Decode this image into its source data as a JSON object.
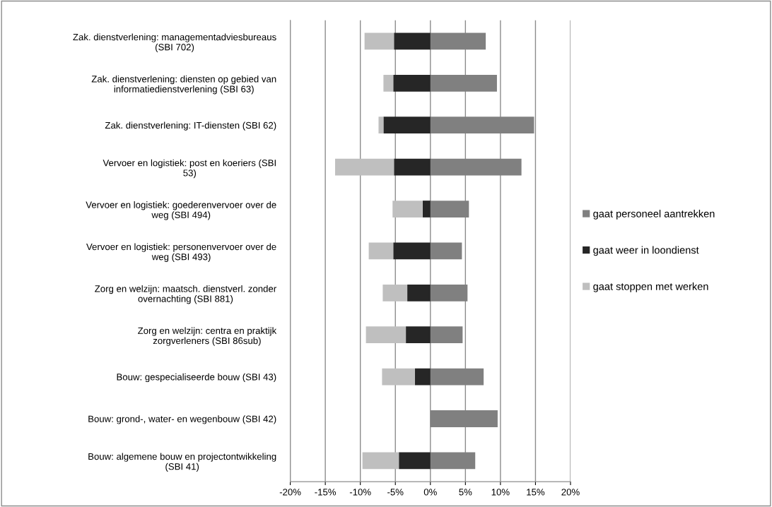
{
  "chart_data": {
    "type": "bar",
    "orientation": "horizontal",
    "stacked": true,
    "categories": [
      "Zak. dienstverlening: managementadviesbureaus (SBI 702)",
      "Zak. dienstverlening: diensten op gebied van informatiedienstverlening (SBI 63)",
      "Zak. dienstverlening: IT-diensten (SBI 62)",
      "Vervoer en logistiek: post en koeriers (SBI 53)",
      "Vervoer en logistiek: goederenvervoer over de weg (SBI 494)",
      "Vervoer en logistiek: personenvervoer over de weg (SBI 493)",
      "Zorg en welzijn: maatsch. dienstverl. zonder overnachting (SBI 881)",
      "Zorg en welzijn: centra en praktijk zorgverleners (SBI 86sub)",
      "Bouw: gespecialiseerde bouw (SBI 43)",
      "Bouw: grond-, water- en wegenbouw (SBI 42)",
      "Bouw: algemene bouw en projectontwikkeling (SBI 41)"
    ],
    "series": [
      {
        "name": "gaat personeel aantrekken",
        "color": "#808080",
        "values": [
          7.9,
          9.5,
          14.8,
          13.0,
          5.5,
          4.5,
          5.3,
          4.6,
          7.6,
          9.6,
          6.4
        ]
      },
      {
        "name": "gaat weer in loondienst",
        "color": "#262626",
        "values": [
          -5.2,
          -5.3,
          -6.7,
          -5.2,
          -1.1,
          -5.3,
          -3.3,
          -3.5,
          -2.2,
          0,
          -4.5
        ]
      },
      {
        "name": "gaat stoppen met werken",
        "color": "#bfbfbf",
        "values": [
          -4.2,
          -1.4,
          -0.7,
          -8.4,
          -4.3,
          -3.5,
          -3.5,
          -5.7,
          -4.7,
          0,
          -5.2
        ]
      }
    ],
    "xlim": [
      -20,
      20
    ],
    "xticks": [
      {
        "value": -20,
        "label": "-20%"
      },
      {
        "value": -15,
        "label": "-15%"
      },
      {
        "value": -10,
        "label": "-10%"
      },
      {
        "value": -5,
        "label": "-5%"
      },
      {
        "value": 0,
        "label": "0%"
      },
      {
        "value": 5,
        "label": "5%"
      },
      {
        "value": 10,
        "label": "10%"
      },
      {
        "value": 15,
        "label": "15%"
      },
      {
        "value": 20,
        "label": "20%"
      }
    ],
    "grid": "x",
    "legend": "right"
  }
}
